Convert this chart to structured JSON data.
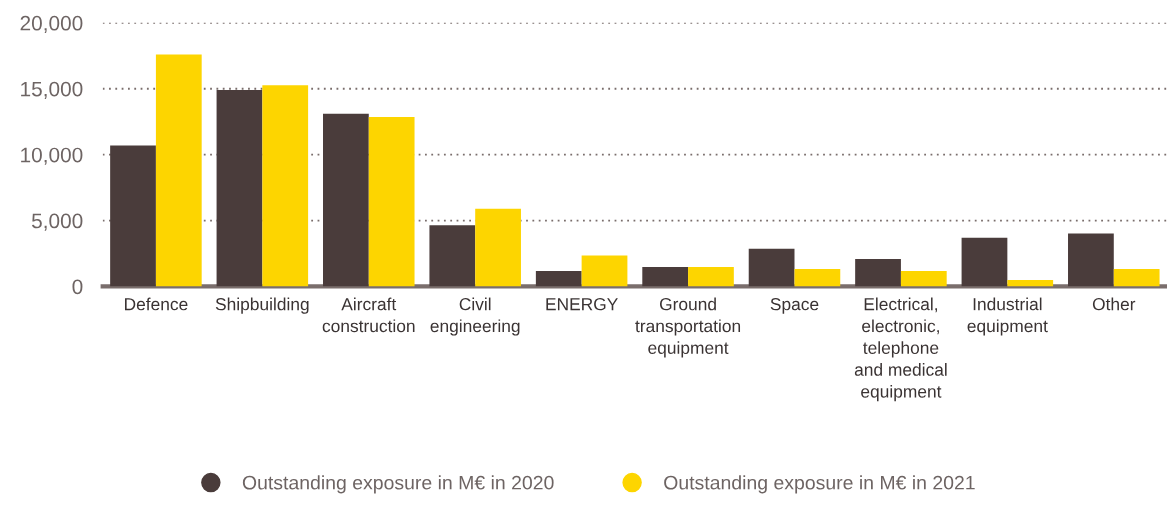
{
  "chart_data": {
    "type": "bar",
    "categories": [
      "Defence",
      "Shipbuilding",
      "Aircraft\nconstruction",
      "Civil\nengineering",
      "ENERGY",
      "Ground\ntransportation\nequipment",
      "Space",
      "Electrical,\nelectronic,\ntelephone\nand medical\nequipment",
      "Industrial\nequipment",
      "Other"
    ],
    "series": [
      {
        "name": "Outstanding exposure in M€ in 2020",
        "color": "#4a3c3b",
        "values": [
          10700,
          14900,
          13100,
          4650,
          1170,
          1470,
          2860,
          2080,
          3700,
          4020
        ]
      },
      {
        "name": "Outstanding exposure in M€ in 2021",
        "color": "#fdd500",
        "values": [
          17600,
          15270,
          12860,
          5890,
          2340,
          1470,
          1330,
          1180,
          490,
          1330
        ]
      }
    ],
    "ylim": [
      0,
      20000
    ],
    "yticks": [
      {
        "value": 0,
        "label": "0"
      },
      {
        "value": 5000,
        "label": "5,000"
      },
      {
        "value": 10000,
        "label": "10,000"
      },
      {
        "value": 15000,
        "label": "15,000"
      },
      {
        "value": 20000,
        "label": "20,000"
      }
    ],
    "grid": "y",
    "legend": "bottom",
    "marker": "circle"
  }
}
